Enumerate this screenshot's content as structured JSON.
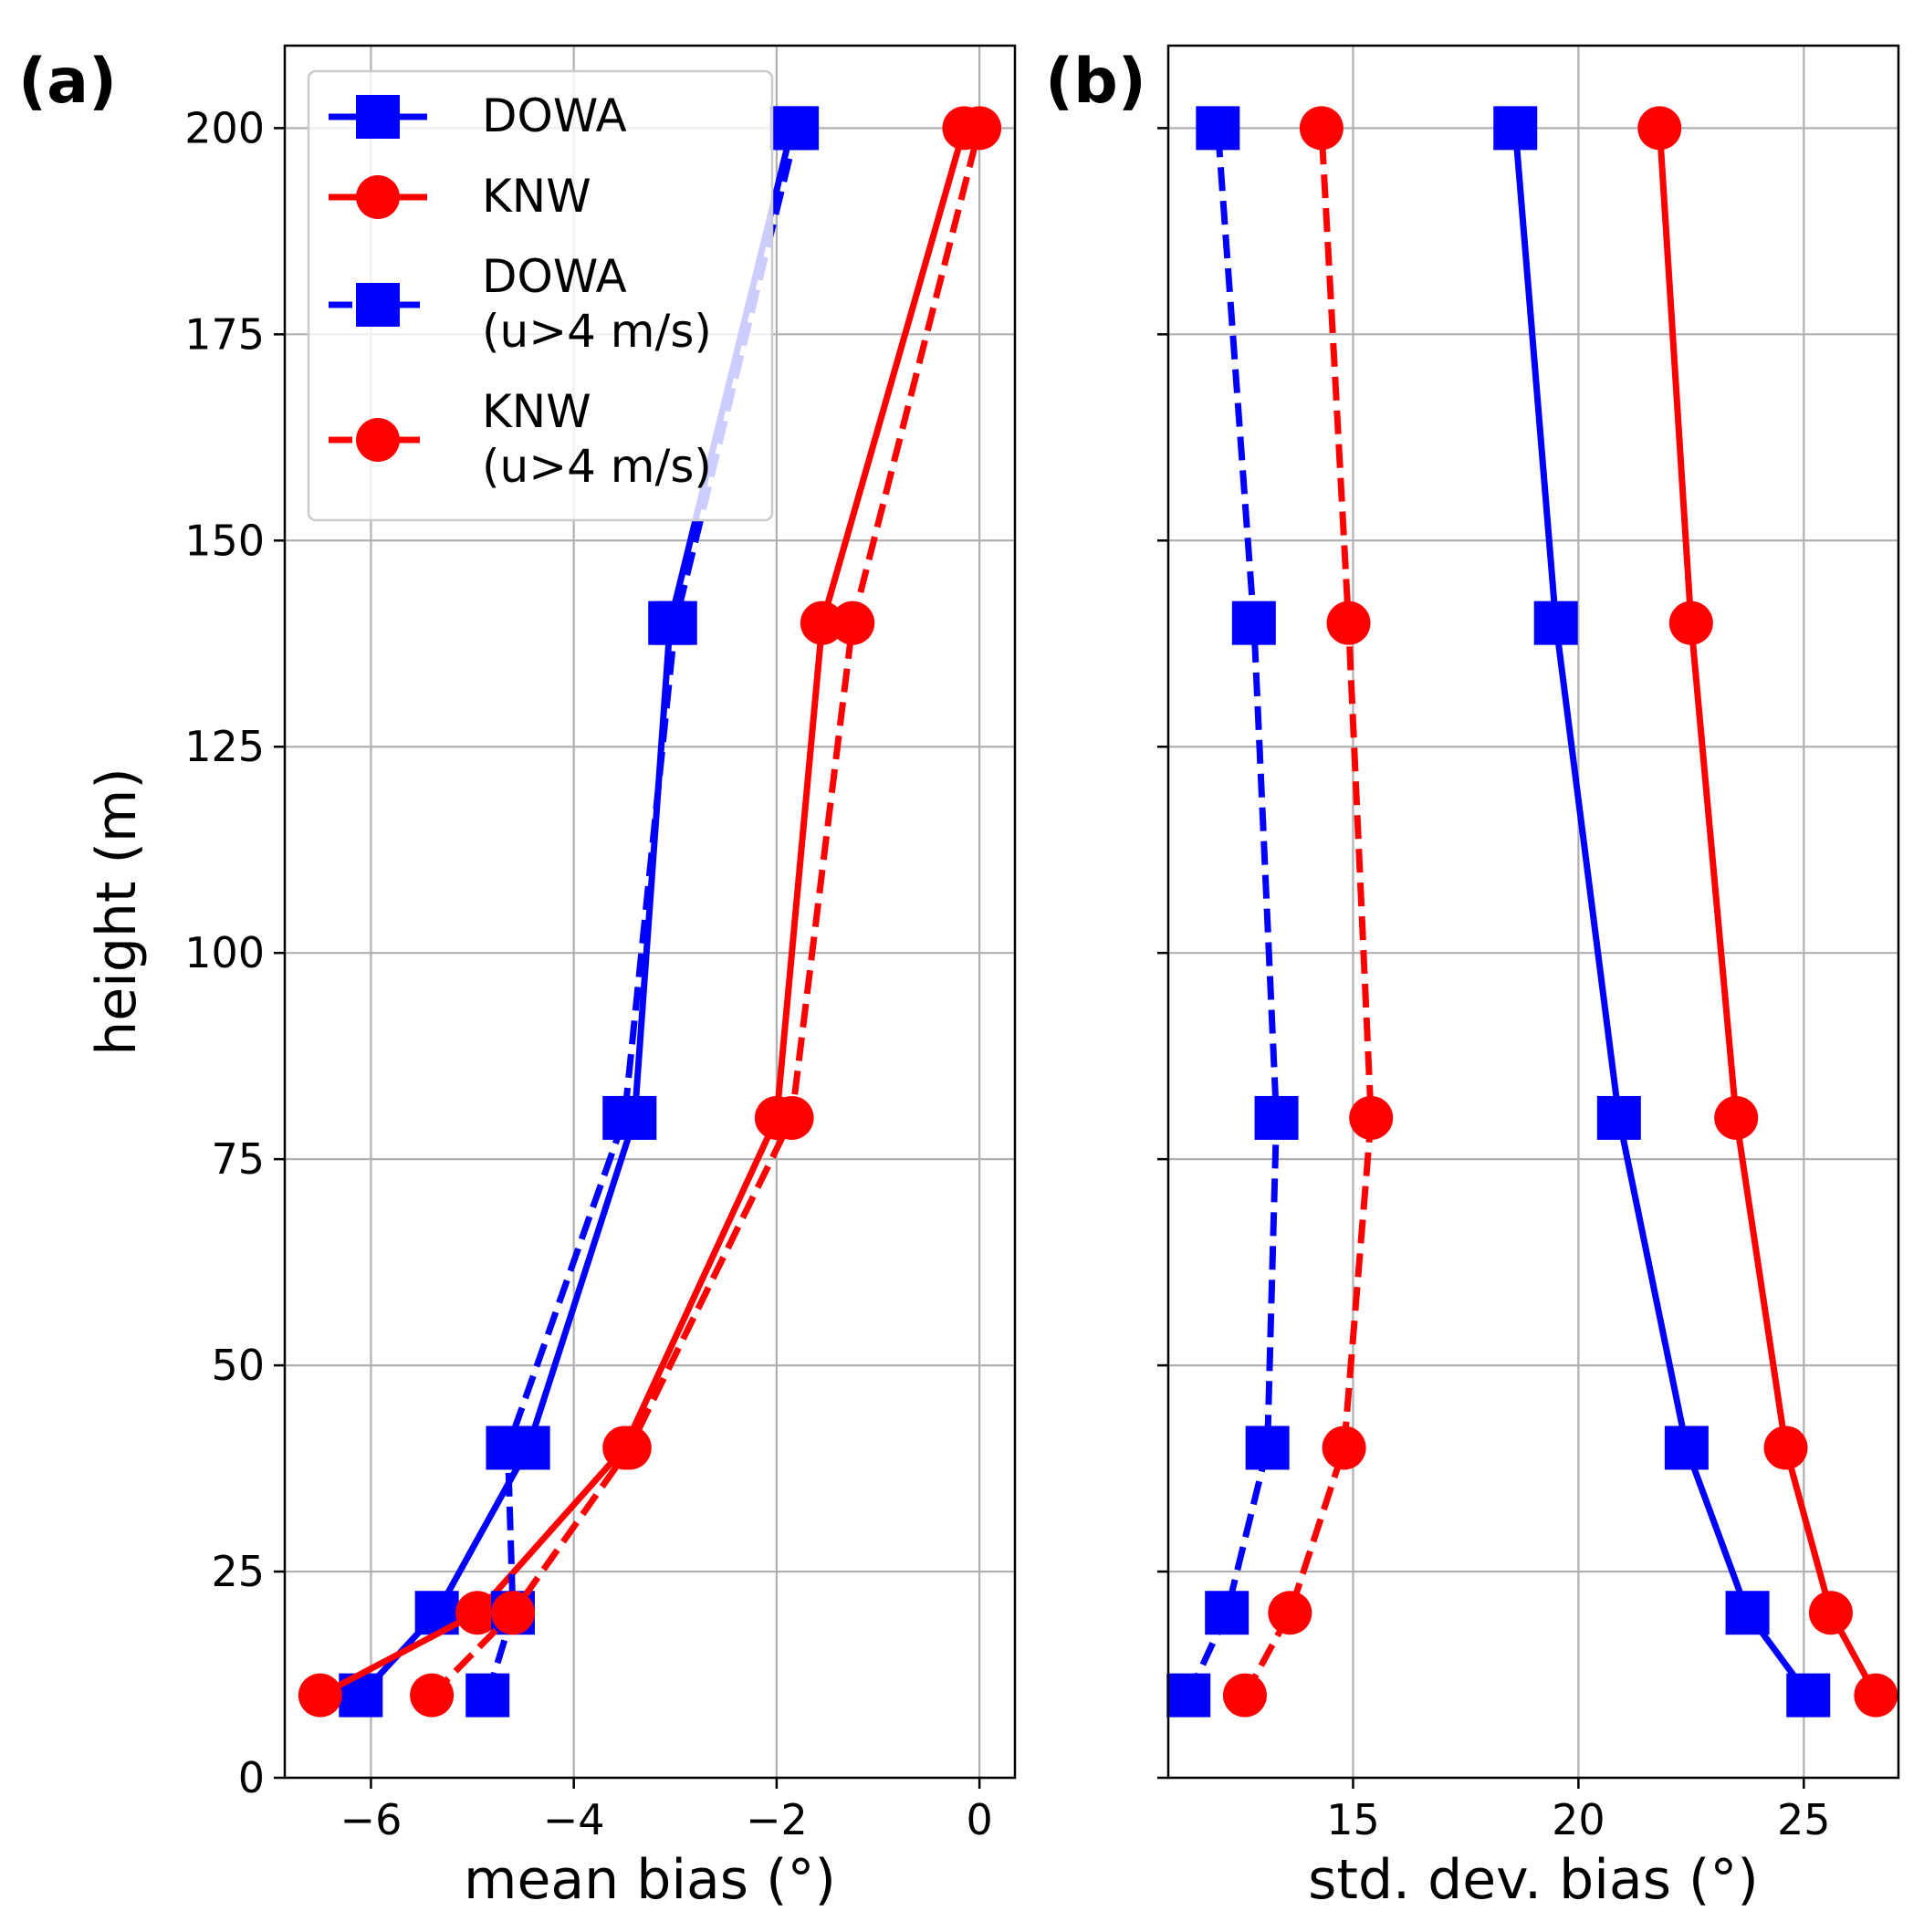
{
  "chart_data": [
    {
      "type": "line",
      "panel_label": "(a)",
      "xlabel": "mean bias (°)",
      "ylabel": "height (m)",
      "xlim": [
        -6.85,
        0.35
      ],
      "ylim": [
        0,
        210
      ],
      "xticks": [
        -6,
        -4,
        -2,
        0
      ],
      "xtick_labels": [
        "−6",
        "−4",
        "−2",
        "0"
      ],
      "yticks": [
        0,
        25,
        50,
        75,
        100,
        125,
        150,
        175,
        200
      ],
      "ytick_labels": [
        "0",
        "25",
        "50",
        "75",
        "100",
        "125",
        "150",
        "175",
        "200"
      ],
      "grid": true,
      "legend_position": "upper-left",
      "series": [
        {
          "name": "DOWA",
          "color": "#0000ff",
          "marker": "square",
          "linestyle": "solid",
          "x": [
            -6.1,
            -5.35,
            -4.45,
            -3.4,
            -3.05,
            -1.85
          ],
          "y": [
            10,
            20,
            40,
            80,
            140,
            200
          ]
        },
        {
          "name": "KNW",
          "color": "#ff0000",
          "marker": "circle",
          "linestyle": "solid",
          "x": [
            -6.5,
            -4.95,
            -3.5,
            -2.0,
            -1.55,
            -0.15
          ],
          "y": [
            10,
            20,
            40,
            80,
            140,
            200
          ]
        },
        {
          "name": "DOWA (u>4 m/s)",
          "color": "#0000ff",
          "marker": "square",
          "linestyle": "dashed",
          "x": [
            -4.85,
            -4.6,
            -4.65,
            -3.5,
            -3.0,
            -1.8
          ],
          "y": [
            10,
            20,
            40,
            80,
            140,
            200
          ]
        },
        {
          "name": "KNW (u>4 m/s)",
          "color": "#ff0000",
          "marker": "circle",
          "linestyle": "dashed",
          "x": [
            -5.4,
            -4.6,
            -3.45,
            -1.85,
            -1.25,
            0.0
          ],
          "y": [
            10,
            20,
            40,
            80,
            140,
            200
          ]
        }
      ]
    },
    {
      "type": "line",
      "panel_label": "(b)",
      "xlabel": "std. dev. bias (°)",
      "ylabel": "",
      "xlim": [
        10.9,
        27.1
      ],
      "ylim": [
        0,
        210
      ],
      "xticks": [
        15,
        20,
        25
      ],
      "xtick_labels": [
        "15",
        "20",
        "25"
      ],
      "yticks": [
        0,
        25,
        50,
        75,
        100,
        125,
        150,
        175,
        200
      ],
      "grid": true,
      "series": [
        {
          "name": "DOWA",
          "color": "#0000ff",
          "marker": "square",
          "linestyle": "solid",
          "x": [
            25.1,
            23.75,
            22.4,
            20.9,
            19.5,
            18.6
          ],
          "y": [
            10,
            20,
            40,
            80,
            140,
            200
          ]
        },
        {
          "name": "KNW",
          "color": "#ff0000",
          "marker": "circle",
          "linestyle": "solid",
          "x": [
            26.6,
            25.6,
            24.6,
            23.5,
            22.5,
            21.8
          ],
          "y": [
            10,
            20,
            40,
            80,
            140,
            200
          ]
        },
        {
          "name": "DOWA (u>4 m/s)",
          "color": "#0000ff",
          "marker": "square",
          "linestyle": "dashed",
          "x": [
            11.35,
            12.2,
            13.1,
            13.3,
            12.8,
            12.0
          ],
          "y": [
            10,
            20,
            40,
            80,
            140,
            200
          ]
        },
        {
          "name": "KNW (u>4 m/s)",
          "color": "#ff0000",
          "marker": "circle",
          "linestyle": "dashed",
          "x": [
            12.6,
            13.6,
            14.8,
            15.4,
            14.9,
            14.3
          ],
          "y": [
            10,
            20,
            40,
            80,
            140,
            200
          ]
        }
      ]
    }
  ],
  "legend": {
    "entries": [
      {
        "lines": [
          "DOWA"
        ],
        "color": "#0000ff",
        "marker": "square",
        "linestyle": "solid"
      },
      {
        "lines": [
          "KNW"
        ],
        "color": "#ff0000",
        "marker": "circle",
        "linestyle": "solid"
      },
      {
        "lines": [
          "DOWA",
          "(u>4 m/s)"
        ],
        "color": "#0000ff",
        "marker": "square",
        "linestyle": "dashed"
      },
      {
        "lines": [
          "KNW",
          "(u>4 m/s)"
        ],
        "color": "#ff0000",
        "marker": "circle",
        "linestyle": "dashed"
      }
    ]
  }
}
